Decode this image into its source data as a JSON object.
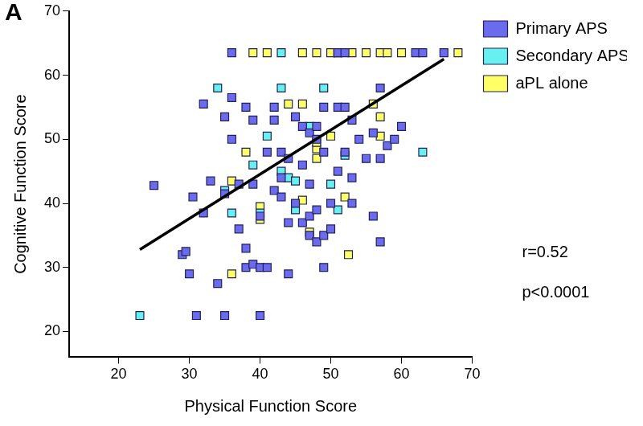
{
  "chart_data": {
    "type": "scatter",
    "title": "A",
    "x_label": "Physical Function Score",
    "y_label": "Cognitive Function Score",
    "xlim": [
      13,
      70
    ],
    "ylim": [
      16,
      70
    ],
    "xticks": [
      20,
      30,
      40,
      50,
      60,
      70
    ],
    "yticks": [
      20,
      30,
      40,
      50,
      60,
      70
    ],
    "grid": false,
    "legend": "right",
    "annotations": [
      "r=0.52",
      "p<0.0001"
    ],
    "fit_line": {
      "x": [
        23,
        66
      ],
      "y": [
        32.8,
        62.5
      ]
    },
    "series": [
      {
        "name": "Primary APS",
        "color": "#6b6bf0",
        "marker": "square",
        "x": [
          25,
          29,
          29.5,
          30,
          30.5,
          31,
          32,
          32,
          33,
          34,
          35,
          35,
          35,
          36,
          36,
          37,
          37,
          38,
          38,
          38,
          39,
          39,
          39,
          40,
          40,
          40,
          41,
          41,
          42,
          42,
          42,
          43,
          43,
          43,
          44,
          44,
          44,
          45,
          45,
          46,
          46,
          46,
          47,
          47,
          47,
          47,
          48,
          48,
          48,
          48,
          49,
          49,
          49,
          49,
          50,
          50,
          51,
          51,
          52,
          52,
          53,
          53,
          53,
          54,
          55,
          56,
          56,
          57,
          57,
          57,
          58,
          59,
          60,
          36,
          51,
          52,
          62,
          63,
          66
        ],
        "y": [
          42.8,
          32,
          32.5,
          29,
          41,
          22.5,
          55.5,
          38.5,
          43.5,
          27.5,
          22.5,
          53.5,
          41.5,
          56.5,
          50,
          43,
          36,
          30,
          33,
          55,
          30.5,
          43,
          53,
          22.5,
          30,
          38,
          30,
          48,
          55,
          53,
          42,
          44,
          41,
          48,
          29,
          47,
          37,
          40,
          53.5,
          52,
          46,
          37,
          51,
          38,
          43,
          35,
          52,
          34,
          50,
          39,
          30,
          35,
          55,
          48,
          40,
          36,
          55,
          45,
          48,
          55,
          44,
          40,
          53,
          50,
          47,
          38,
          51,
          58,
          34,
          47,
          49,
          50,
          52,
          63.5,
          63.5,
          63.5,
          63.5,
          63.5,
          63.5
        ]
      },
      {
        "name": "Secondary APS",
        "color": "#66f0f0",
        "marker": "square",
        "x": [
          23,
          34,
          35,
          36,
          39,
          40,
          41,
          43,
          43,
          44,
          45,
          45,
          47,
          49,
          50,
          51,
          52,
          63,
          43,
          51
        ],
        "y": [
          22.5,
          58,
          42,
          38.5,
          46,
          38.5,
          50.5,
          58,
          45,
          44,
          43.5,
          39,
          52,
          58,
          43,
          39,
          47.5,
          48,
          63.5,
          63.5
        ]
      },
      {
        "name": "aPL alone",
        "color": "#ffff66",
        "marker": "square",
        "x": [
          36,
          36,
          38,
          40,
          40,
          44,
          46,
          46,
          47,
          48,
          48,
          48,
          50,
          52,
          52.5,
          56,
          57,
          57,
          39,
          41,
          46,
          48,
          50,
          53,
          55,
          57,
          58,
          60,
          68
        ],
        "y": [
          43.5,
          29,
          48,
          37.5,
          39.5,
          55.5,
          55.5,
          40.5,
          35.5,
          48.5,
          47,
          49.5,
          50.5,
          41,
          32,
          55.5,
          53.5,
          50.5,
          63.5,
          63.5,
          63.5,
          63.5,
          63.5,
          63.5,
          63.5,
          63.5,
          63.5,
          63.5,
          63.5
        ]
      }
    ]
  }
}
